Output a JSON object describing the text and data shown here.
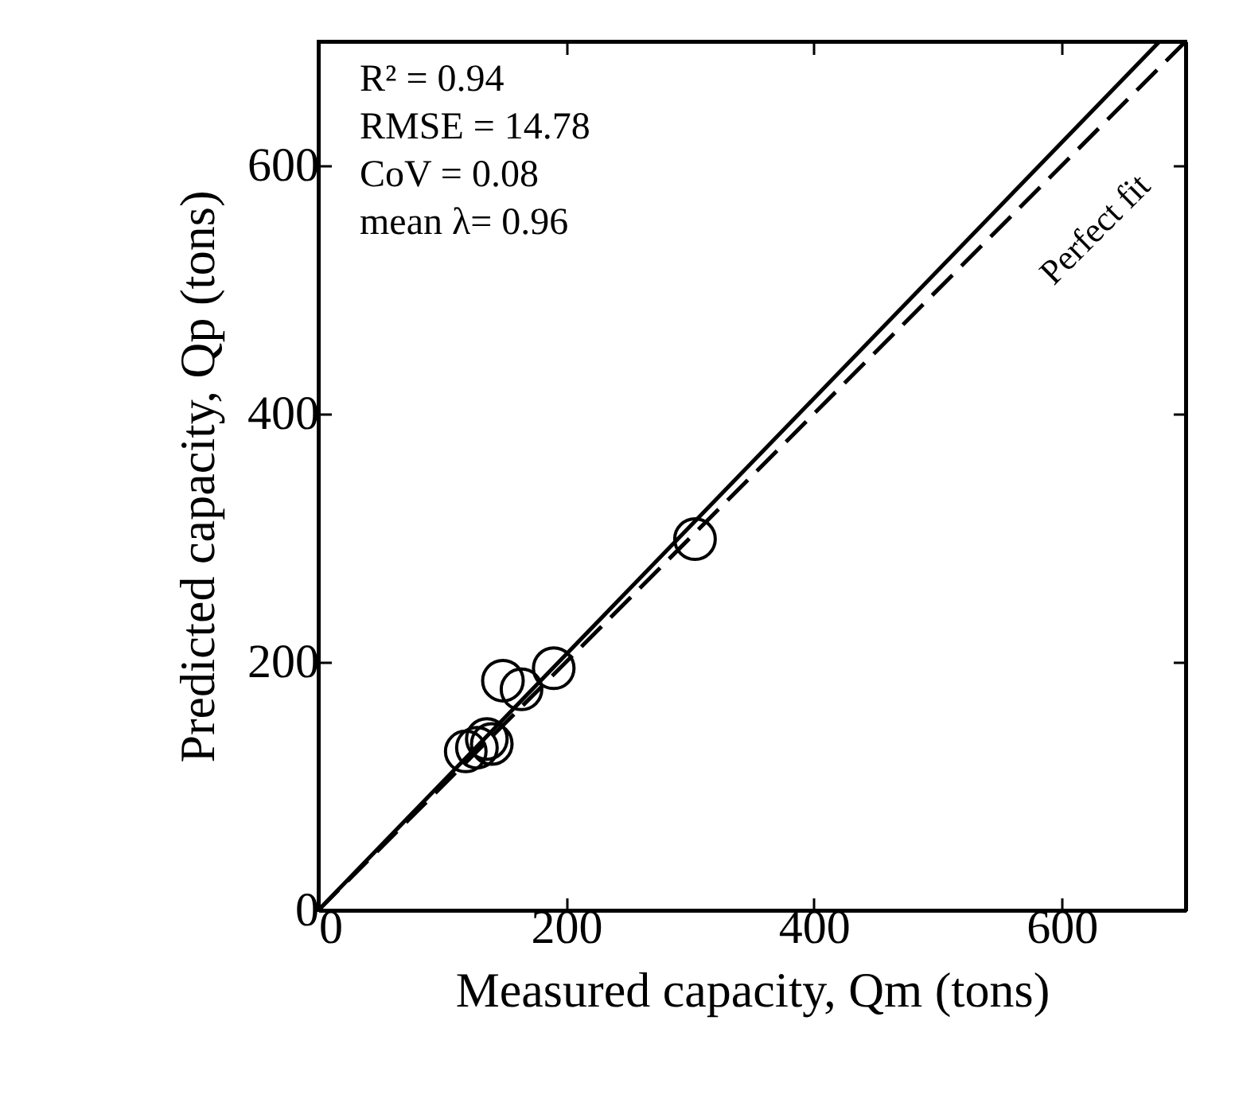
{
  "chart_data": {
    "type": "scatter",
    "xlabel": "Measured capacity, Qm (tons)",
    "ylabel": "Predicted capacity, Qp (tons)",
    "xlim": [
      0,
      700
    ],
    "ylim": [
      0,
      700
    ],
    "xticks": [
      0,
      200,
      400,
      600
    ],
    "yticks": [
      0,
      200,
      400,
      600
    ],
    "grid": false,
    "series": [
      {
        "color": "#000000",
        "marker": "circle",
        "x": [
          304,
          190,
          149,
          164,
          136,
          119,
          128,
          140
        ],
        "values": [
          299,
          195,
          185,
          178,
          138,
          128,
          131,
          134
        ]
      },
      {
        "type": "line",
        "color": "#000000",
        "line_style": "solid",
        "x": [
          0,
          679
        ],
        "values": [
          0,
          700
        ]
      },
      {
        "type": "line",
        "color": "#000000",
        "line_style": "dashed",
        "x": [
          0,
          700
        ],
        "values": [
          0,
          700
        ]
      }
    ],
    "annotations": [
      "R² = 0.94",
      "RMSE = 14.78",
      "CoV = 0.08",
      "mean λ= 0.96",
      "Perfect fit"
    ]
  }
}
